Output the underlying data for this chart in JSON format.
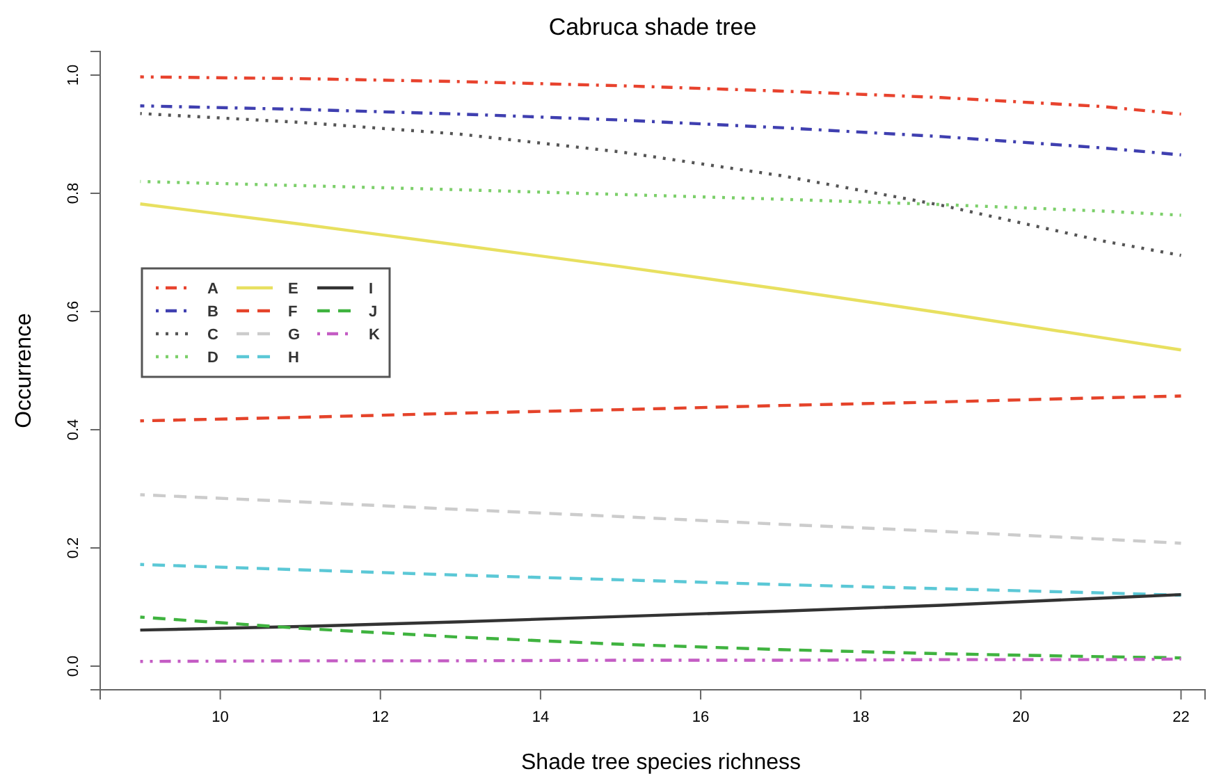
{
  "chart_data": {
    "type": "line",
    "title": "Cabruca shade tree",
    "xlabel": "Shade tree species richness",
    "ylabel": "Occurrence",
    "x": [
      9,
      11,
      13,
      15,
      17,
      19,
      21,
      22
    ],
    "xlim": [
      8.5,
      22.3
    ],
    "xticks": [
      10,
      12,
      14,
      16,
      18,
      20,
      22
    ],
    "ylim": [
      -0.04,
      1.04
    ],
    "yticks": [
      {
        "value": 0,
        "label": "0.0"
      },
      {
        "value": 0.2,
        "label": "0.2"
      },
      {
        "value": 0.4,
        "label": "0.4"
      },
      {
        "value": 0.6,
        "label": "0.6"
      },
      {
        "value": 0.8,
        "label": "0.8"
      },
      {
        "value": 1,
        "label": "1.0"
      }
    ],
    "grid": false,
    "legend": "left",
    "marker": "none",
    "series": [
      {
        "name": "A",
        "color": "#e8432e",
        "line_style": "dashdot",
        "values": [
          0.997,
          0.994,
          0.989,
          0.982,
          0.973,
          0.962,
          0.947,
          0.934
        ]
      },
      {
        "name": "B",
        "color": "#3f3fb0",
        "line_style": "dashdot",
        "values": [
          0.948,
          0.942,
          0.934,
          0.924,
          0.911,
          0.896,
          0.877,
          0.865
        ]
      },
      {
        "name": "C",
        "color": "#555555",
        "line_style": "dotted",
        "values": [
          0.935,
          0.92,
          0.9,
          0.87,
          0.83,
          0.78,
          0.72,
          0.695
        ]
      },
      {
        "name": "D",
        "color": "#7ccf6a",
        "line_style": "dotted",
        "values": [
          0.82,
          0.813,
          0.806,
          0.798,
          0.79,
          0.781,
          0.77,
          0.763
        ]
      },
      {
        "name": "E",
        "color": "#e8e060",
        "line_style": "solid",
        "values": [
          0.782,
          0.748,
          0.712,
          0.676,
          0.638,
          0.598,
          0.556,
          0.535
        ]
      },
      {
        "name": "F",
        "color": "#e5432a",
        "line_style": "dashed",
        "values": [
          0.415,
          0.421,
          0.428,
          0.434,
          0.441,
          0.447,
          0.454,
          0.457
        ]
      },
      {
        "name": "G",
        "color": "#cccccc",
        "line_style": "dashed",
        "values": [
          0.29,
          0.278,
          0.265,
          0.253,
          0.24,
          0.228,
          0.215,
          0.208
        ]
      },
      {
        "name": "H",
        "color": "#5bc8d6",
        "line_style": "dashed",
        "values": [
          0.172,
          0.163,
          0.154,
          0.146,
          0.138,
          0.131,
          0.124,
          0.12
        ]
      },
      {
        "name": "I",
        "color": "#333333",
        "line_style": "solid",
        "values": [
          0.061,
          0.067,
          0.075,
          0.084,
          0.093,
          0.103,
          0.115,
          0.121
        ]
      },
      {
        "name": "J",
        "color": "#3fb33f",
        "line_style": "dashed",
        "values": [
          0.083,
          0.064,
          0.049,
          0.037,
          0.028,
          0.021,
          0.016,
          0.014
        ]
      },
      {
        "name": "K",
        "color": "#c45cc4",
        "line_style": "dashdot",
        "values": [
          0.008,
          0.009,
          0.009,
          0.01,
          0.01,
          0.011,
          0.011,
          0.012
        ]
      }
    ]
  }
}
